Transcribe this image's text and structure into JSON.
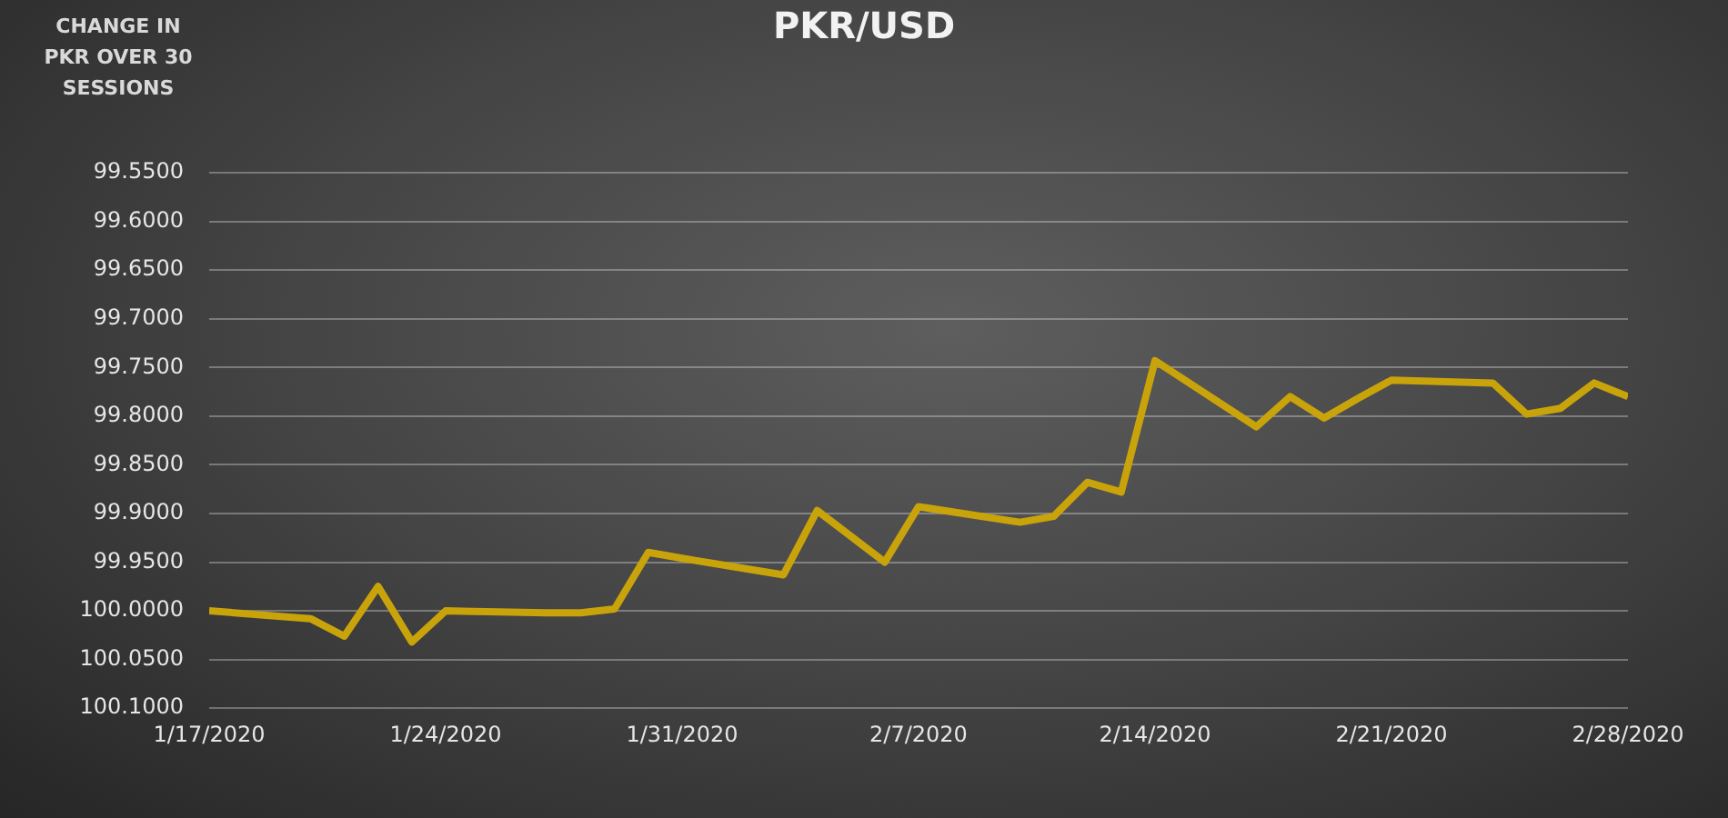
{
  "chart_data": {
    "type": "line",
    "title": "PKR/USD",
    "ylabel": "CHANGE IN PKR OVER 30 SESSIONS",
    "x": [
      "2020-01-17",
      "2020-01-20",
      "2020-01-21",
      "2020-01-22",
      "2020-01-23",
      "2020-01-24",
      "2020-01-27",
      "2020-01-28",
      "2020-01-29",
      "2020-01-30",
      "2020-01-31",
      "2020-02-03",
      "2020-02-04",
      "2020-02-06",
      "2020-02-07",
      "2020-02-10",
      "2020-02-11",
      "2020-02-12",
      "2020-02-13",
      "2020-02-14",
      "2020-02-17",
      "2020-02-18",
      "2020-02-19",
      "2020-02-20",
      "2020-02-21",
      "2020-02-24",
      "2020-02-25",
      "2020-02-26",
      "2020-02-27",
      "2020-02-28"
    ],
    "series": [
      {
        "color": "#c9a30a",
        "values": [
          100.0,
          100.008,
          100.026,
          99.975,
          100.032,
          100.0,
          100.002,
          100.002,
          99.998,
          99.94,
          99.946,
          99.963,
          99.897,
          99.95,
          99.893,
          99.909,
          99.903,
          99.868,
          99.878,
          99.743,
          99.811,
          99.78,
          99.802,
          99.782,
          99.763,
          99.766,
          99.798,
          99.792,
          99.766,
          99.78
        ]
      }
    ],
    "xlim": [
      "2020-01-17",
      "2020-02-28"
    ],
    "xticks": [
      {
        "value": "2020-01-17",
        "label": "1/17/2020"
      },
      {
        "value": "2020-01-24",
        "label": "1/24/2020"
      },
      {
        "value": "2020-01-31",
        "label": "1/31/2020"
      },
      {
        "value": "2020-02-07",
        "label": "2/7/2020"
      },
      {
        "value": "2020-02-14",
        "label": "2/14/2020"
      },
      {
        "value": "2020-02-21",
        "label": "2/21/2020"
      },
      {
        "value": "2020-02-28",
        "label": "2/28/2020"
      }
    ],
    "ylim": [
      100.1,
      99.55
    ],
    "yticks": [
      {
        "value": 99.55,
        "label": "99.5500"
      },
      {
        "value": 99.6,
        "label": "99.6000"
      },
      {
        "value": 99.65,
        "label": "99.6500"
      },
      {
        "value": 99.7,
        "label": "99.7000"
      },
      {
        "value": 99.75,
        "label": "99.7500"
      },
      {
        "value": 99.8,
        "label": "99.8000"
      },
      {
        "value": 99.85,
        "label": "99.8500"
      },
      {
        "value": 99.9,
        "label": "99.9000"
      },
      {
        "value": 99.95,
        "label": "99.9500"
      },
      {
        "value": 100.0,
        "label": "100.0000"
      },
      {
        "value": 100.05,
        "label": "100.0500"
      },
      {
        "value": 100.1,
        "label": "100.1000"
      }
    ],
    "grid": "y",
    "legend": false,
    "marker": "none",
    "line_style": "solid"
  }
}
